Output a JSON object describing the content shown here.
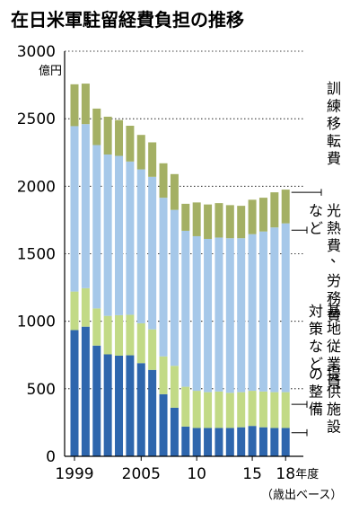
{
  "chart_data": {
    "type": "bar",
    "stacked": true,
    "title": "在日米軍駐留経費負担の推移",
    "y_unit": "億円",
    "x_unit": "年度",
    "footnote": "（歳出ベース）",
    "ylim": [
      0,
      3000
    ],
    "yticks": [
      0,
      500,
      1000,
      1500,
      2000,
      2500,
      3000
    ],
    "x": [
      1999,
      2000,
      2001,
      2002,
      2003,
      2004,
      2005,
      2006,
      2007,
      2008,
      2009,
      2010,
      2011,
      2012,
      2013,
      2014,
      2015,
      2016,
      2017,
      2018
    ],
    "xtick_labels": [
      {
        "x": 1999,
        "label": "1999"
      },
      {
        "x": 2005,
        "label": "2005"
      },
      {
        "x": 2010,
        "label": "10"
      },
      {
        "x": 2015,
        "label": "15"
      },
      {
        "x": 2018,
        "label": "18"
      }
    ],
    "series": [
      {
        "name": "提供施設の整備",
        "label_lines": [
          "提供施設",
          "の整備"
        ],
        "color": "#2e66ad",
        "values": [
          935,
          960,
          820,
          755,
          745,
          748,
          690,
          640,
          460,
          360,
          220,
          210,
          210,
          210,
          210,
          215,
          225,
          215,
          210,
          210
        ]
      },
      {
        "name": "基地従業員対策など",
        "label_lines": [
          "基地従業員",
          "対策など"
        ],
        "color": "#c2da86",
        "values": [
          285,
          285,
          275,
          285,
          300,
          300,
          295,
          300,
          280,
          310,
          295,
          275,
          265,
          270,
          260,
          260,
          260,
          265,
          265,
          265
        ]
      },
      {
        "name": "光熱費、労務費など",
        "label_lines": [
          "光熱費、労務費",
          "など"
        ],
        "color": "#a6c8e9",
        "values": [
          1225,
          1215,
          1210,
          1195,
          1180,
          1135,
          1140,
          1130,
          1175,
          1155,
          1155,
          1145,
          1135,
          1140,
          1145,
          1140,
          1160,
          1185,
          1220,
          1250
        ]
      },
      {
        "name": "訓練移転費",
        "label_lines": [
          "訓練移転費"
        ],
        "color": "#a4b064",
        "values": [
          310,
          300,
          270,
          280,
          265,
          265,
          255,
          255,
          255,
          265,
          200,
          250,
          255,
          255,
          245,
          240,
          255,
          250,
          260,
          250
        ]
      }
    ]
  }
}
